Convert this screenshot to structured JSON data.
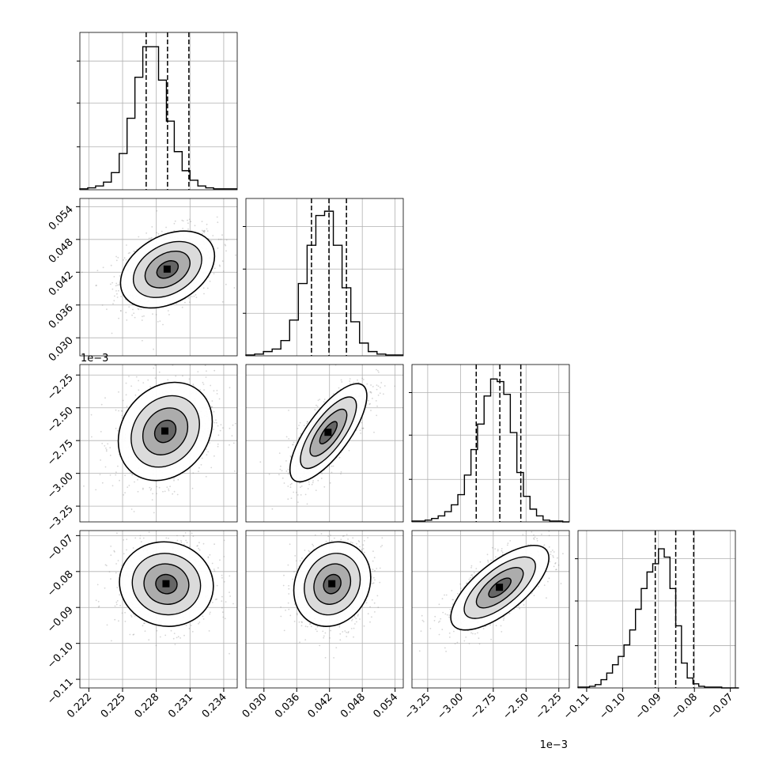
{
  "chart_data": {
    "type": "corner",
    "title": "",
    "dimensions": [
      {
        "range": [
          0.2212,
          0.2352
        ],
        "ticks": [
          0.222,
          0.225,
          0.228,
          0.231,
          0.234
        ],
        "tick_labels": [
          "0.222",
          "0.225",
          "0.228",
          "0.231",
          "0.234"
        ],
        "offset_label": "",
        "quantiles": [
          0.2271,
          0.229,
          0.2309
        ],
        "hist_bins": [
          0.2212,
          0.2352,
          0.0007
        ],
        "hist_counts": [
          1,
          2,
          4,
          8,
          18,
          38,
          75,
          118,
          150,
          150,
          115,
          72,
          40,
          20,
          10,
          4,
          2,
          1,
          1,
          1
        ],
        "hist_ylim": [
          0,
          165
        ]
      },
      {
        "range": [
          0.0267,
          0.0555
        ],
        "ticks": [
          0.03,
          0.036,
          0.042,
          0.048,
          0.054
        ],
        "tick_labels": [
          "0.030",
          "0.036",
          "0.042",
          "0.048",
          "0.054"
        ],
        "offset_label": "",
        "quantiles": [
          0.0387,
          0.0419,
          0.0451
        ],
        "hist_bins": [
          0.0267,
          0.0555,
          0.0016
        ],
        "hist_counts": [
          1,
          2,
          5,
          8,
          18,
          42,
          85,
          130,
          165,
          170,
          130,
          80,
          40,
          15,
          5,
          2,
          1,
          1
        ],
        "hist_ylim": [
          0,
          185
        ]
      },
      {
        "range": [
          -3.37,
          -2.17
        ],
        "ticks": [
          -3.25,
          -3.0,
          -2.75,
          -2.5,
          -2.25
        ],
        "tick_labels": [
          "−3.25",
          "−3.00",
          "−2.75",
          "−2.50",
          "−2.25"
        ],
        "offset_label": "1e−3",
        "quantiles": [
          -2.88,
          -2.7,
          -2.54
        ],
        "hist_bins": [
          -3.37,
          -2.17,
          0.05
        ],
        "hist_counts": [
          1,
          1,
          2,
          4,
          7,
          12,
          20,
          32,
          55,
          85,
          115,
          148,
          168,
          165,
          150,
          105,
          58,
          30,
          15,
          7,
          2,
          1,
          1,
          0
        ],
        "hist_ylim": [
          0,
          185
        ]
      },
      {
        "range": [
          -0.1124,
          -0.0686
        ],
        "ticks": [
          -0.11,
          -0.1,
          -0.09,
          -0.08,
          -0.07
        ],
        "tick_labels": [
          "−0.11",
          "−0.10",
          "−0.09",
          "−0.08",
          "−0.07"
        ],
        "offset_label": "",
        "quantiles": [
          -0.0909,
          -0.0852,
          -0.0802
        ],
        "hist_bins": [
          -0.1124,
          -0.0686,
          0.0016
        ],
        "hist_counts": [
          1,
          1,
          2,
          4,
          10,
          18,
          28,
          38,
          52,
          70,
          95,
          120,
          140,
          150,
          168,
          158,
          120,
          75,
          30,
          12,
          5,
          2,
          1,
          1,
          1,
          0,
          0,
          0
        ],
        "hist_ylim": [
          0,
          190
        ]
      }
    ],
    "scatter_centers": [
      {
        "x": 0,
        "y": 1,
        "cx": 0.229,
        "cy": 0.0425
      },
      {
        "x": 0,
        "y": 2,
        "cx": 0.2288,
        "cy": -2.68
      },
      {
        "x": 1,
        "y": 2,
        "cx": 0.0418,
        "cy": -2.69
      },
      {
        "x": 0,
        "y": 3,
        "cx": 0.2289,
        "cy": -0.0835
      },
      {
        "x": 1,
        "y": 3,
        "cx": 0.0425,
        "cy": -0.0835
      },
      {
        "x": 2,
        "y": 3,
        "cx": -2.7,
        "cy": -0.0845
      }
    ],
    "grid": true,
    "legend": "none",
    "colors": {
      "contour": "#000000",
      "scatter": "#888888",
      "hist": "#000000"
    }
  }
}
